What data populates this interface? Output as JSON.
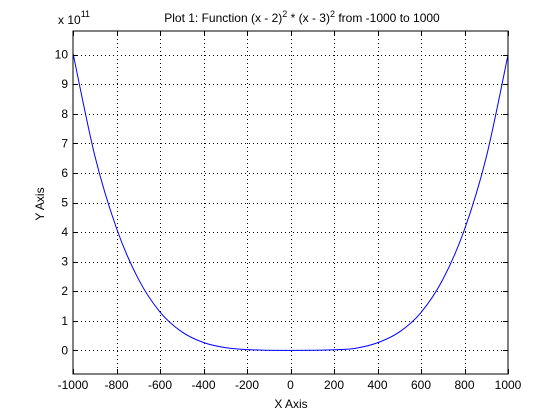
{
  "chart_data": {
    "type": "line",
    "title": {
      "part1": "Plot 1: Function (x - 2)",
      "sup1": "2",
      "part2": " * (x - 3)",
      "sup2": "2",
      "part3": " from -1000 to 1000"
    },
    "xlabel": "X Axis",
    "ylabel": "Y Axis",
    "y_multiplier": {
      "prefix": "x 10",
      "exponent": "11"
    },
    "xlim": [
      -1000,
      1000
    ],
    "ylim": [
      -0.8,
      10.8
    ],
    "x_ticks": [
      -1000,
      -800,
      -600,
      -400,
      -200,
      0,
      200,
      400,
      600,
      800,
      1000
    ],
    "x_tick_labels": [
      "-1000",
      "-800",
      "-600",
      "-400",
      "-200",
      "0",
      "200",
      "400",
      "600",
      "800",
      "1000"
    ],
    "y_ticks": [
      0,
      1,
      2,
      3,
      4,
      5,
      6,
      7,
      8,
      9,
      10
    ],
    "y_tick_labels": [
      "0",
      "1",
      "2",
      "3",
      "4",
      "5",
      "6",
      "7",
      "8",
      "9",
      "10"
    ],
    "grid": true,
    "grid_style": "dotted",
    "series": [
      {
        "color": "#0000ff",
        "x": [
          -1000,
          -900,
          -800,
          -700,
          -600,
          -500,
          -400,
          -300,
          -200,
          -100,
          0,
          100,
          200,
          300,
          400,
          500,
          600,
          700,
          800,
          900,
          1000
        ],
        "y": [
          10.05,
          6.5911,
          4.1293,
          2.4185,
          1.2966,
          0.6279,
          0.2661,
          0.0924,
          0.0245,
          0.00337,
          3.6e-12,
          0.00275,
          0.0184,
          0.0719,
          0.2557,
          0.6178,
          1.2796,
          2.3906,
          4.0871,
          6.5304,
          9.99
        ]
      }
    ]
  }
}
